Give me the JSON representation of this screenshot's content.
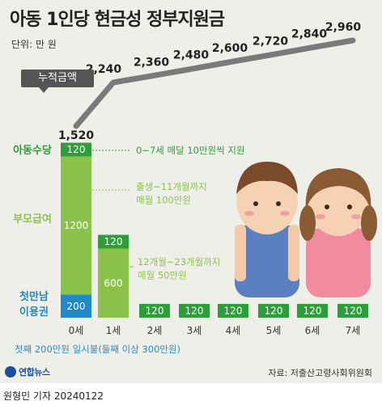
{
  "title": "아동 1인당 현금성 정부지원금",
  "unit": "단위: 만 원",
  "cumulative_label": "누적금액",
  "category_labels": {
    "child_allowance": "아동수당",
    "parent_benefit": "부모급여",
    "first_meeting": "첫만남\n이용권"
  },
  "annotations": {
    "child_allowance": "0~7세 매달 10만원씩 지원",
    "parent_benefit_0": "출생~11개월까지\n매월 100만원",
    "parent_benefit_1": "12개월~23개월까지\n매월 50만원",
    "first_meeting": "첫째 200만원 일시불(둘째 이상 300만원)"
  },
  "source": "자료: 저출산고령사회위원회",
  "logo": "연합뉴스",
  "byline": "원형민 기자  20240122",
  "colors": {
    "child_allowance": "#2e9e3a",
    "parent_benefit": "#8bc34a",
    "first_meeting": "#1e88c8",
    "line": "#7a7a7a",
    "panel": "#efefea"
  },
  "chart_data": {
    "type": "bar",
    "stacked": true,
    "categories": [
      "0세",
      "1세",
      "2세",
      "3세",
      "4세",
      "5세",
      "6세",
      "7세"
    ],
    "series": [
      {
        "name": "첫만남 이용권",
        "values": [
          200,
          0,
          0,
          0,
          0,
          0,
          0,
          0
        ]
      },
      {
        "name": "부모급여",
        "values": [
          1200,
          600,
          0,
          0,
          0,
          0,
          0,
          0
        ]
      },
      {
        "name": "아동수당",
        "values": [
          120,
          120,
          120,
          120,
          120,
          120,
          120,
          120
        ]
      }
    ],
    "cumulative": {
      "name": "누적금액",
      "values": [
        1520,
        2240,
        2360,
        2480,
        2600,
        2720,
        2840,
        2960
      ],
      "labels": [
        "1,520",
        "2,240",
        "2,360",
        "2,480",
        "2,600",
        "2,720",
        "2,840",
        "2,960"
      ]
    }
  }
}
